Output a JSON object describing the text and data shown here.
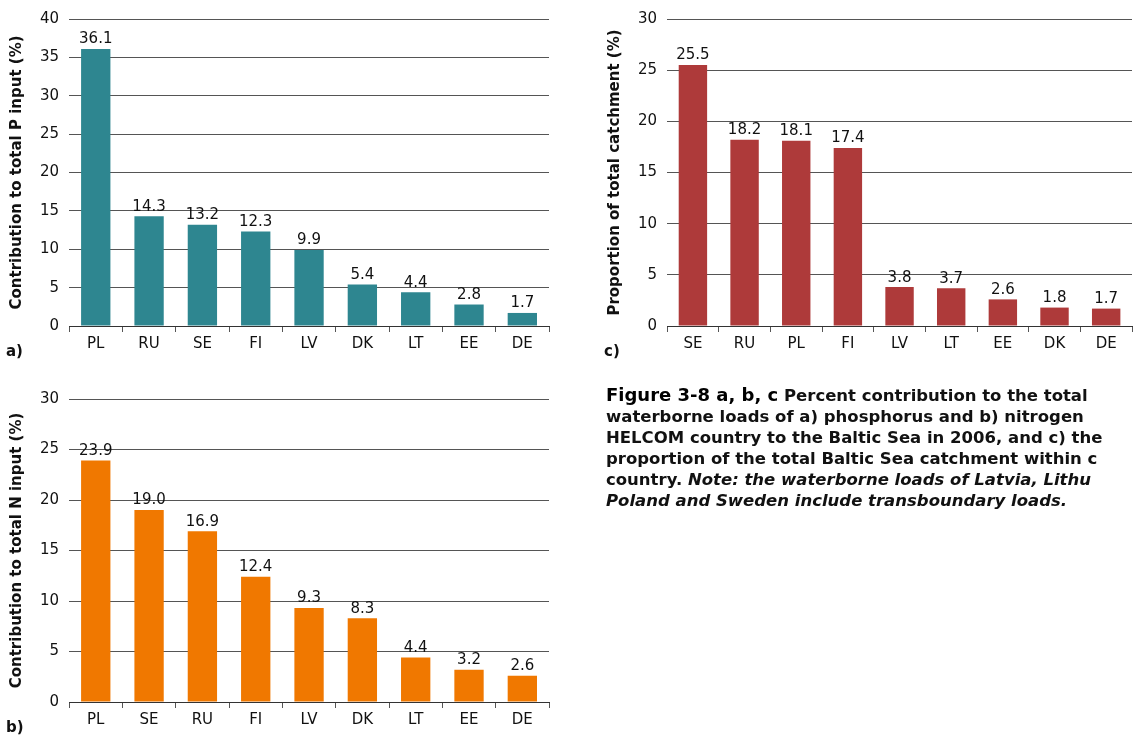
{
  "chart_data": [
    {
      "type": "bar",
      "ylabel": "Contribution to total P input (%)",
      "categories": [
        "PL",
        "RU",
        "SE",
        "FI",
        "LV",
        "DK",
        "LT",
        "EE",
        "DE"
      ],
      "values": [
        36.1,
        14.3,
        13.2,
        12.3,
        9.9,
        5.4,
        4.4,
        2.8,
        1.7
      ],
      "value_labels": [
        "36.1",
        "14.3",
        "13.2",
        "12.3",
        "9.9",
        "5.4",
        "4.4",
        "2.8",
        "1.7"
      ],
      "color": "#2e8690",
      "ylim": [
        0,
        40
      ],
      "yticks": [
        0,
        5,
        10,
        15,
        20,
        25,
        30,
        35,
        40
      ],
      "grid": "y",
      "legend": false,
      "annotations": [
        "a)"
      ]
    },
    {
      "type": "bar",
      "ylabel": "Proportion of total catchment (%)",
      "categories": [
        "SE",
        "RU",
        "PL",
        "FI",
        "LV",
        "LT",
        "EE",
        "DK",
        "DE"
      ],
      "values": [
        25.5,
        18.2,
        18.1,
        17.4,
        3.8,
        3.7,
        2.6,
        1.8,
        1.7
      ],
      "value_labels": [
        "25.5",
        "18.2",
        "18.1",
        "17.4",
        "3.8",
        "3.7",
        "2.6",
        "1.8",
        "1.7"
      ],
      "color": "#ae3a3a",
      "ylim": [
        0,
        30
      ],
      "yticks": [
        0,
        5,
        10,
        15,
        20,
        25,
        30
      ],
      "grid": "y",
      "legend": false,
      "annotations": [
        "c)"
      ]
    },
    {
      "type": "bar",
      "ylabel": "Contribution to total N input (%)",
      "categories": [
        "PL",
        "SE",
        "RU",
        "FI",
        "LV",
        "DK",
        "LT",
        "EE",
        "DE"
      ],
      "values": [
        23.9,
        19.0,
        16.9,
        12.4,
        9.3,
        8.3,
        4.4,
        3.2,
        2.6
      ],
      "value_labels": [
        "23.9",
        "19.0",
        "16.9",
        "12.4",
        "9.3",
        "8.3",
        "4.4",
        "3.2",
        "2.6"
      ],
      "color": "#f07800",
      "ylim": [
        0,
        30
      ],
      "yticks": [
        0,
        5,
        10,
        15,
        20,
        25,
        30
      ],
      "grid": "y",
      "legend": false,
      "annotations": [
        "b)"
      ]
    },
    {
      "type": "other",
      "title": "Figure 3-8 a, b, c",
      "annotations": [
        "Percent contribution to the total",
        "waterborne loads of a) phosphorus and b) nitrogen",
        "HELCOM country to the Baltic Sea in 2006, and c) the",
        "proportion of the total Baltic Sea catchment within c",
        "country.",
        "Note: the waterborne loads of Latvia, Lithu",
        "Poland and Sweden include transboundary loads."
      ]
    }
  ]
}
